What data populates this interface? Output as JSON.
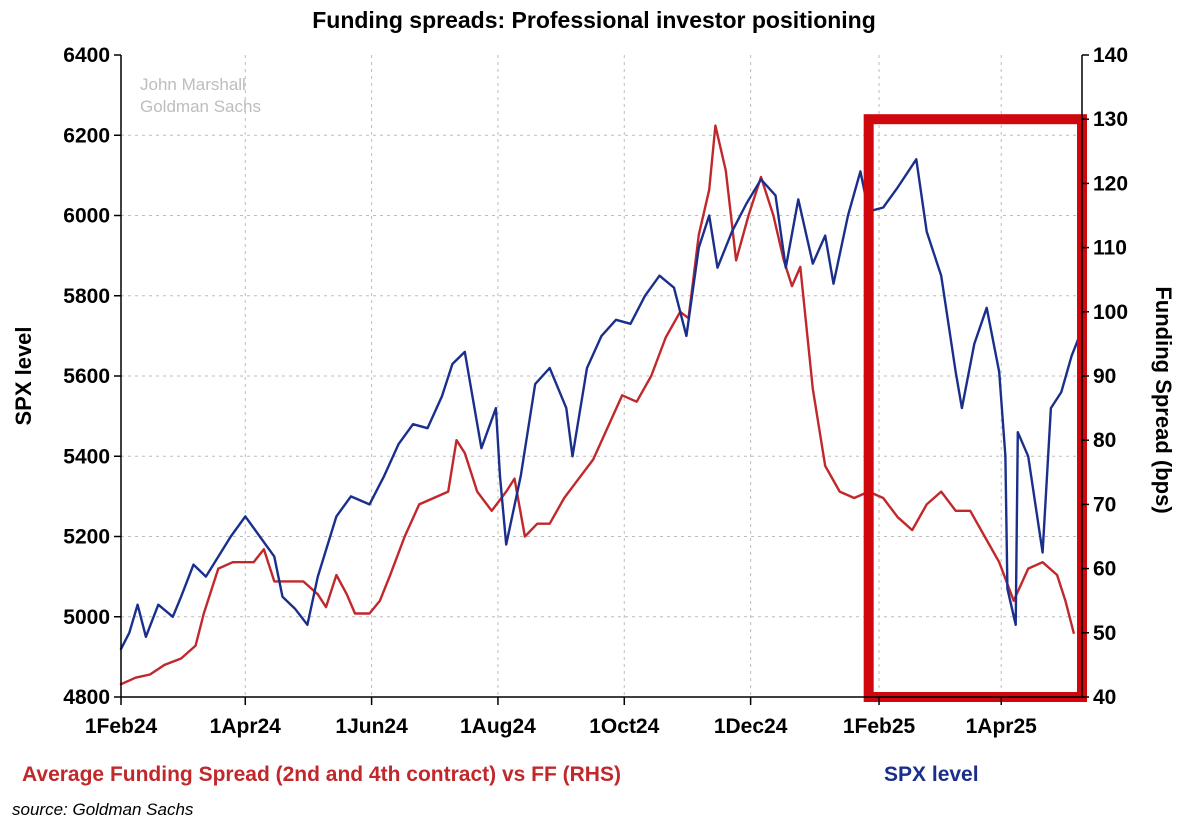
{
  "chart_data": {
    "type": "line",
    "title": "Funding spreads: Professional investor positioning",
    "watermark": [
      "John Marshall",
      "Goldman Sachs"
    ],
    "ylabel": "SPX level",
    "y2label": "Funding Spread (bps)",
    "ylim": [
      4800,
      6400
    ],
    "y2lim": [
      40,
      140
    ],
    "xlim": [
      "2024-02-01",
      "2025-05-10"
    ],
    "y_ticks": [
      "4800",
      "5000",
      "5200",
      "5400",
      "5600",
      "5800",
      "6000",
      "6200",
      "6400"
    ],
    "y2_ticks": [
      "40",
      "50",
      "60",
      "70",
      "80",
      "90",
      "100",
      "110",
      "120",
      "130",
      "140"
    ],
    "x_ticks": [
      {
        "date": "2024-02-01",
        "label": "1Feb24"
      },
      {
        "date": "2024-04-01",
        "label": "1Apr24"
      },
      {
        "date": "2024-06-01",
        "label": "1Jun24"
      },
      {
        "date": "2024-08-01",
        "label": "1Aug24"
      },
      {
        "date": "2024-10-01",
        "label": "1Oct24"
      },
      {
        "date": "2024-12-01",
        "label": "1Dec24"
      },
      {
        "date": "2025-02-01",
        "label": "1Feb25"
      },
      {
        "date": "2025-04-01",
        "label": "1Apr25"
      }
    ],
    "grid": true,
    "colors": {
      "spx": "#1a2f8c",
      "funding": "#c0282b",
      "highlight": "#d0070d"
    },
    "highlight_box": {
      "x": [
        "2025-01-27",
        "2025-05-10"
      ],
      "y2": [
        40,
        130
      ]
    },
    "series": [
      {
        "name": "Average Funding Spread (2nd and 4th contract) vs FF (RHS)",
        "axis": "right",
        "points": [
          [
            "2024-02-01",
            42
          ],
          [
            "2024-02-08",
            43
          ],
          [
            "2024-02-15",
            43.5
          ],
          [
            "2024-02-22",
            45
          ],
          [
            "2024-03-01",
            46
          ],
          [
            "2024-03-08",
            48
          ],
          [
            "2024-03-12",
            53
          ],
          [
            "2024-03-19",
            60
          ],
          [
            "2024-03-26",
            61
          ],
          [
            "2024-04-01",
            61
          ],
          [
            "2024-04-05",
            61
          ],
          [
            "2024-04-10",
            63
          ],
          [
            "2024-04-15",
            58
          ],
          [
            "2024-04-22",
            58
          ],
          [
            "2024-04-29",
            58
          ],
          [
            "2024-05-06",
            56
          ],
          [
            "2024-05-10",
            54
          ],
          [
            "2024-05-15",
            59
          ],
          [
            "2024-05-20",
            56
          ],
          [
            "2024-05-24",
            53
          ],
          [
            "2024-05-31",
            53
          ],
          [
            "2024-06-05",
            55
          ],
          [
            "2024-06-10",
            59
          ],
          [
            "2024-06-17",
            65
          ],
          [
            "2024-06-24",
            70
          ],
          [
            "2024-07-01",
            71
          ],
          [
            "2024-07-08",
            72
          ],
          [
            "2024-07-12",
            80
          ],
          [
            "2024-07-16",
            78
          ],
          [
            "2024-07-22",
            72
          ],
          [
            "2024-07-29",
            69
          ],
          [
            "2024-08-05",
            72
          ],
          [
            "2024-08-09",
            74
          ],
          [
            "2024-08-14",
            65
          ],
          [
            "2024-08-20",
            67
          ],
          [
            "2024-08-26",
            67
          ],
          [
            "2024-09-02",
            71
          ],
          [
            "2024-09-09",
            74
          ],
          [
            "2024-09-16",
            77
          ],
          [
            "2024-09-23",
            82
          ],
          [
            "2024-09-30",
            87
          ],
          [
            "2024-10-07",
            86
          ],
          [
            "2024-10-14",
            90
          ],
          [
            "2024-10-21",
            96
          ],
          [
            "2024-10-28",
            100
          ],
          [
            "2024-11-01",
            99
          ],
          [
            "2024-11-06",
            112
          ],
          [
            "2024-11-11",
            119
          ],
          [
            "2024-11-14",
            129
          ],
          [
            "2024-11-19",
            122
          ],
          [
            "2024-11-24",
            108
          ],
          [
            "2024-11-30",
            115
          ],
          [
            "2024-12-06",
            121
          ],
          [
            "2024-12-12",
            115
          ],
          [
            "2024-12-17",
            108
          ],
          [
            "2024-12-21",
            104
          ],
          [
            "2024-12-25",
            107
          ],
          [
            "2024-12-31",
            88
          ],
          [
            "2025-01-06",
            76
          ],
          [
            "2025-01-13",
            72
          ],
          [
            "2025-01-20",
            71
          ],
          [
            "2025-01-27",
            72
          ],
          [
            "2025-02-03",
            71
          ],
          [
            "2025-02-10",
            68
          ],
          [
            "2025-02-17",
            66
          ],
          [
            "2025-02-24",
            70
          ],
          [
            "2025-03-03",
            72
          ],
          [
            "2025-03-10",
            69
          ],
          [
            "2025-03-17",
            69
          ],
          [
            "2025-03-24",
            65
          ],
          [
            "2025-03-31",
            61
          ],
          [
            "2025-04-07",
            55
          ],
          [
            "2025-04-14",
            60
          ],
          [
            "2025-04-21",
            61
          ],
          [
            "2025-04-28",
            59
          ],
          [
            "2025-05-02",
            55
          ],
          [
            "2025-05-06",
            50
          ]
        ]
      },
      {
        "name": "SPX level",
        "axis": "left",
        "points": [
          [
            "2024-02-01",
            4920
          ],
          [
            "2024-02-05",
            4960
          ],
          [
            "2024-02-09",
            5030
          ],
          [
            "2024-02-13",
            4950
          ],
          [
            "2024-02-19",
            5030
          ],
          [
            "2024-02-26",
            5000
          ],
          [
            "2024-03-01",
            5050
          ],
          [
            "2024-03-07",
            5130
          ],
          [
            "2024-03-13",
            5100
          ],
          [
            "2024-03-19",
            5150
          ],
          [
            "2024-03-25",
            5200
          ],
          [
            "2024-04-01",
            5250
          ],
          [
            "2024-04-08",
            5200
          ],
          [
            "2024-04-15",
            5150
          ],
          [
            "2024-04-19",
            5050
          ],
          [
            "2024-04-25",
            5020
          ],
          [
            "2024-05-01",
            4980
          ],
          [
            "2024-05-06",
            5100
          ],
          [
            "2024-05-15",
            5250
          ],
          [
            "2024-05-22",
            5300
          ],
          [
            "2024-05-31",
            5280
          ],
          [
            "2024-06-07",
            5350
          ],
          [
            "2024-06-14",
            5430
          ],
          [
            "2024-06-21",
            5480
          ],
          [
            "2024-06-28",
            5470
          ],
          [
            "2024-07-05",
            5550
          ],
          [
            "2024-07-10",
            5630
          ],
          [
            "2024-07-16",
            5660
          ],
          [
            "2024-07-24",
            5420
          ],
          [
            "2024-07-31",
            5520
          ],
          [
            "2024-08-02",
            5350
          ],
          [
            "2024-08-05",
            5180
          ],
          [
            "2024-08-12",
            5350
          ],
          [
            "2024-08-19",
            5580
          ],
          [
            "2024-08-26",
            5620
          ],
          [
            "2024-09-03",
            5520
          ],
          [
            "2024-09-06",
            5400
          ],
          [
            "2024-09-13",
            5620
          ],
          [
            "2024-09-20",
            5700
          ],
          [
            "2024-09-27",
            5740
          ],
          [
            "2024-10-04",
            5730
          ],
          [
            "2024-10-11",
            5800
          ],
          [
            "2024-10-18",
            5850
          ],
          [
            "2024-10-25",
            5820
          ],
          [
            "2024-10-31",
            5700
          ],
          [
            "2024-11-06",
            5920
          ],
          [
            "2024-11-11",
            6000
          ],
          [
            "2024-11-15",
            5870
          ],
          [
            "2024-11-22",
            5960
          ],
          [
            "2024-11-29",
            6030
          ],
          [
            "2024-12-06",
            6090
          ],
          [
            "2024-12-13",
            6050
          ],
          [
            "2024-12-18",
            5870
          ],
          [
            "2024-12-24",
            6040
          ],
          [
            "2024-12-31",
            5880
          ],
          [
            "2025-01-06",
            5950
          ],
          [
            "2025-01-10",
            5830
          ],
          [
            "2025-01-17",
            6000
          ],
          [
            "2025-01-23",
            6110
          ],
          [
            "2025-01-27",
            6010
          ],
          [
            "2025-02-03",
            6020
          ],
          [
            "2025-02-10",
            6070
          ],
          [
            "2025-02-19",
            6140
          ],
          [
            "2025-02-24",
            5960
          ],
          [
            "2025-03-03",
            5850
          ],
          [
            "2025-03-10",
            5610
          ],
          [
            "2025-03-13",
            5520
          ],
          [
            "2025-03-19",
            5680
          ],
          [
            "2025-03-25",
            5770
          ],
          [
            "2025-03-31",
            5610
          ],
          [
            "2025-04-03",
            5400
          ],
          [
            "2025-04-04",
            5070
          ],
          [
            "2025-04-08",
            4980
          ],
          [
            "2025-04-09",
            5460
          ],
          [
            "2025-04-14",
            5400
          ],
          [
            "2025-04-21",
            5160
          ],
          [
            "2025-04-25",
            5520
          ],
          [
            "2025-04-30",
            5560
          ],
          [
            "2025-05-05",
            5650
          ],
          [
            "2025-05-08",
            5690
          ]
        ]
      }
    ]
  },
  "legend": {
    "funding_label": "Average Funding Spread (2nd and 4th contract) vs FF (RHS)",
    "spx_label": "SPX level"
  },
  "source": "source: Goldman Sachs"
}
